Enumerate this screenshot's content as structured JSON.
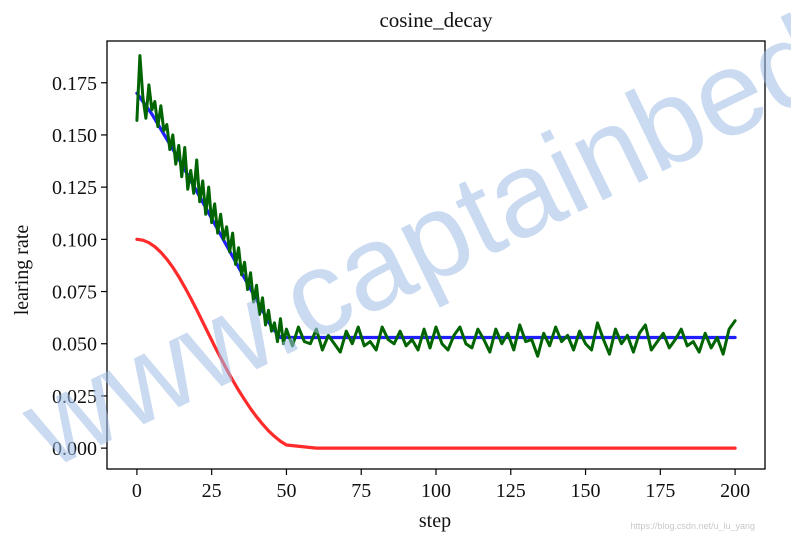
{
  "chart_data": {
    "type": "line",
    "title": "cosine_decay",
    "xlabel": "step",
    "ylabel": "learing rate",
    "xlim": [
      -10,
      210
    ],
    "ylim": [
      -0.01,
      0.195
    ],
    "xticks": [
      0,
      25,
      50,
      75,
      100,
      125,
      150,
      175,
      200
    ],
    "xtick_labels": [
      "0",
      "25",
      "50",
      "75",
      "100",
      "125",
      "150",
      "175",
      "200"
    ],
    "yticks": [
      0.0,
      0.025,
      0.05,
      0.075,
      0.1,
      0.125,
      0.15,
      0.175
    ],
    "ytick_labels": [
      "0.000",
      "0.025",
      "0.050",
      "0.075",
      "0.100",
      "0.125",
      "0.150",
      "0.175"
    ],
    "grid": false,
    "series": [
      {
        "color": "#1f1fff",
        "x": [
          0,
          5,
          10,
          15,
          20,
          25,
          30,
          35,
          40,
          45,
          48,
          60,
          80,
          100,
          120,
          140,
          160,
          180,
          200
        ],
        "values": [
          0.17,
          0.16,
          0.148,
          0.136,
          0.123,
          0.11,
          0.097,
          0.084,
          0.071,
          0.058,
          0.053,
          0.053,
          0.053,
          0.053,
          0.053,
          0.053,
          0.053,
          0.053,
          0.053
        ]
      },
      {
        "color": "#006400",
        "x": [
          0,
          1,
          2,
          3,
          4,
          5,
          6,
          7,
          8,
          9,
          10,
          11,
          12,
          13,
          14,
          15,
          16,
          17,
          18,
          19,
          20,
          21,
          22,
          23,
          24,
          25,
          26,
          27,
          28,
          29,
          30,
          31,
          32,
          33,
          34,
          35,
          36,
          37,
          38,
          39,
          40,
          41,
          42,
          43,
          44,
          45,
          46,
          47,
          48,
          49,
          50,
          52,
          54,
          56,
          58,
          60,
          62,
          64,
          66,
          68,
          70,
          72,
          74,
          76,
          78,
          80,
          82,
          84,
          86,
          88,
          90,
          92,
          94,
          96,
          98,
          100,
          102,
          104,
          106,
          108,
          110,
          112,
          114,
          116,
          118,
          120,
          122,
          124,
          126,
          128,
          130,
          132,
          134,
          136,
          138,
          140,
          142,
          144,
          146,
          148,
          150,
          152,
          154,
          156,
          158,
          160,
          162,
          164,
          166,
          168,
          170,
          172,
          174,
          176,
          178,
          180,
          182,
          184,
          186,
          188,
          190,
          192,
          194,
          196,
          198,
          200
        ],
        "values": [
          0.157,
          0.188,
          0.168,
          0.158,
          0.174,
          0.162,
          0.166,
          0.154,
          0.164,
          0.152,
          0.155,
          0.143,
          0.15,
          0.136,
          0.145,
          0.13,
          0.144,
          0.124,
          0.133,
          0.122,
          0.138,
          0.118,
          0.128,
          0.112,
          0.125,
          0.108,
          0.117,
          0.103,
          0.112,
          0.1,
          0.106,
          0.094,
          0.103,
          0.088,
          0.096,
          0.083,
          0.089,
          0.076,
          0.084,
          0.07,
          0.078,
          0.064,
          0.072,
          0.059,
          0.066,
          0.056,
          0.06,
          0.051,
          0.062,
          0.05,
          0.057,
          0.049,
          0.058,
          0.051,
          0.05,
          0.057,
          0.047,
          0.054,
          0.05,
          0.046,
          0.056,
          0.05,
          0.058,
          0.049,
          0.051,
          0.047,
          0.058,
          0.052,
          0.05,
          0.056,
          0.049,
          0.052,
          0.047,
          0.057,
          0.048,
          0.058,
          0.05,
          0.047,
          0.054,
          0.058,
          0.05,
          0.048,
          0.057,
          0.052,
          0.046,
          0.057,
          0.05,
          0.055,
          0.047,
          0.059,
          0.051,
          0.052,
          0.044,
          0.055,
          0.049,
          0.058,
          0.051,
          0.054,
          0.047,
          0.056,
          0.05,
          0.047,
          0.06,
          0.052,
          0.045,
          0.057,
          0.05,
          0.054,
          0.046,
          0.055,
          0.059,
          0.047,
          0.051,
          0.055,
          0.048,
          0.052,
          0.057,
          0.049,
          0.051,
          0.046,
          0.055,
          0.048,
          0.053,
          0.045,
          0.057,
          0.061
        ]
      },
      {
        "color": "#ff2a2a",
        "x": [
          0,
          2,
          4,
          6,
          8,
          10,
          12,
          14,
          16,
          18,
          20,
          22,
          24,
          26,
          28,
          30,
          32,
          34,
          36,
          38,
          40,
          42,
          44,
          46,
          48,
          50,
          60,
          80,
          100,
          120,
          140,
          160,
          180,
          200
        ],
        "values": [
          0.1,
          0.0996,
          0.0984,
          0.0965,
          0.0938,
          0.0905,
          0.0866,
          0.0821,
          0.0771,
          0.0718,
          0.0662,
          0.0604,
          0.0546,
          0.0488,
          0.0432,
          0.0378,
          0.0326,
          0.0277,
          0.0232,
          0.0189,
          0.015,
          0.0115,
          0.0083,
          0.0056,
          0.0033,
          0.0015,
          0.0,
          0.0,
          0.0,
          0.0,
          0.0,
          0.0,
          0.0,
          0.0
        ]
      }
    ]
  },
  "watermark": "www.captainbed.net",
  "credit": "https://blog.csdn.net/u_lu_yang"
}
